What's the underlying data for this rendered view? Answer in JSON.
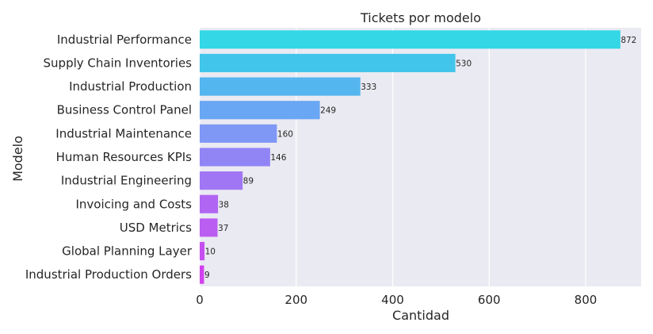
{
  "chart_data": {
    "type": "bar",
    "orientation": "horizontal",
    "title": "Tickets por modelo",
    "xlabel": "Cantidad",
    "ylabel": "Modelo",
    "xlim": [
      0,
      915
    ],
    "xticks": [
      0,
      200,
      400,
      600,
      800
    ],
    "grid": true,
    "categories": [
      "Industrial Performance",
      "Supply Chain Inventories",
      "Industrial Production",
      "Business Control Panel",
      "Industrial Maintenance",
      "Human Resources KPIs",
      "Industrial Engineering",
      "Invoicing and Costs",
      "USD Metrics",
      "Global Planning Layer",
      "Industrial Production Orders"
    ],
    "values": [
      872,
      530,
      333,
      249,
      160,
      146,
      89,
      38,
      37,
      10,
      9
    ],
    "colors": [
      "#33d7e6",
      "#42c5ea",
      "#54b6ee",
      "#69a6f3",
      "#7f97f5",
      "#9185f6",
      "#a176f5",
      "#b066f3",
      "#ba5df1",
      "#c650ef",
      "#d142ee"
    ],
    "plot_background": "#eaeaf2",
    "grid_color": "#ffffff"
  }
}
